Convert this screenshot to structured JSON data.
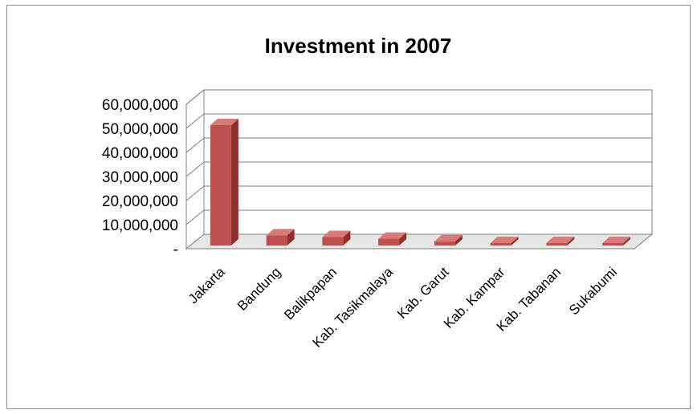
{
  "chart_data": {
    "type": "bar",
    "title": "Investment in 2007",
    "xlabel": "",
    "ylabel": "",
    "categories": [
      "Jakarta",
      "Bandung",
      "Balikpapan",
      "Kab. Tasikmalaya",
      "Kab. Garut",
      "Kab. Kampar",
      "Kab. Tabanan",
      "Sukabumi"
    ],
    "values": [
      50000000,
      4200000,
      3500000,
      2800000,
      1700000,
      300000,
      300000,
      300000
    ],
    "ylim": [
      0,
      60000000
    ],
    "yticks": [
      "-",
      "10,000,000",
      "20,000,000",
      "30,000,000",
      "40,000,000",
      "50,000,000",
      "60,000,000"
    ],
    "grid": true,
    "legend": "none",
    "style": "3d-column",
    "colors": {
      "bar_front": "#c0504d",
      "bar_side": "#8e2f2c",
      "bar_top": "#d87a77",
      "grid": "#808080"
    }
  }
}
